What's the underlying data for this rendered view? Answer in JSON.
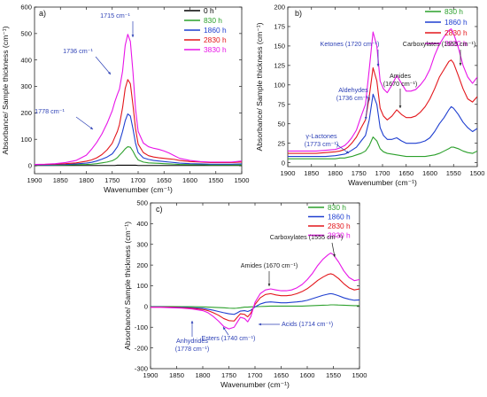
{
  "chart_data": [
    {
      "type": "line",
      "panel_label": "a)",
      "xlabel": "Wavenumber (cm⁻¹)",
      "ylabel": "Absorbance/ Sample thickness (cm⁻¹)",
      "xlim": [
        1900,
        1500
      ],
      "ylim": [
        -30,
        600
      ],
      "x_ticks": [
        1900,
        1850,
        1800,
        1750,
        1700,
        1650,
        1600,
        1550,
        1500
      ],
      "y_ticks": [
        0,
        100,
        200,
        300,
        400,
        500,
        600
      ],
      "legend_position": "top-right",
      "x": [
        1900,
        1880,
        1860,
        1840,
        1820,
        1800,
        1790,
        1780,
        1770,
        1760,
        1750,
        1745,
        1740,
        1736,
        1730,
        1725,
        1720,
        1715,
        1710,
        1705,
        1700,
        1690,
        1680,
        1670,
        1660,
        1650,
        1640,
        1630,
        1620,
        1600,
        1580,
        1560,
        1540,
        1520,
        1500
      ],
      "series": [
        {
          "name": "0 h",
          "color": "#000000",
          "values": [
            1,
            1,
            1,
            1,
            1,
            1,
            1,
            1,
            1,
            1,
            1,
            1,
            2,
            2,
            2,
            2,
            2,
            2,
            2,
            2,
            1,
            1,
            1,
            1,
            1,
            1,
            1,
            1,
            1,
            1,
            1,
            1,
            1,
            1,
            1
          ]
        },
        {
          "name": "830 h",
          "color": "#2ca02c",
          "values": [
            2,
            2,
            2,
            3,
            4,
            5,
            6,
            8,
            11,
            14,
            19,
            24,
            31,
            40,
            52,
            64,
            72,
            70,
            55,
            36,
            22,
            14,
            11,
            10,
            9,
            8,
            7,
            6,
            5,
            4,
            4,
            3,
            3,
            3,
            3
          ]
        },
        {
          "name": "1860 h",
          "color": "#1f3fd0",
          "values": [
            3,
            3,
            4,
            5,
            7,
            10,
            13,
            18,
            25,
            33,
            45,
            58,
            72,
            90,
            130,
            170,
            196,
            188,
            140,
            85,
            50,
            30,
            24,
            20,
            18,
            16,
            14,
            12,
            10,
            8,
            7,
            6,
            6,
            6,
            7
          ]
        },
        {
          "name": "2830 h",
          "color": "#e3161b",
          "values": [
            4,
            5,
            6,
            8,
            11,
            17,
            22,
            30,
            42,
            60,
            85,
            108,
            130,
            156,
            220,
            292,
            326,
            310,
            230,
            140,
            82,
            50,
            38,
            33,
            30,
            28,
            26,
            24,
            20,
            16,
            14,
            12,
            12,
            12,
            14
          ]
        },
        {
          "name": "3830 h",
          "color": "#e815e8",
          "values": [
            5,
            6,
            8,
            12,
            20,
            40,
            62,
            88,
            120,
            160,
            208,
            242,
            270,
            290,
            358,
            455,
            497,
            470,
            355,
            215,
            130,
            86,
            72,
            66,
            62,
            56,
            48,
            38,
            28,
            20,
            16,
            14,
            14,
            14,
            18
          ]
        }
      ],
      "annotations": [
        {
          "text": "1715 cm⁻¹",
          "x": 1715,
          "y": 497
        },
        {
          "text": "1736 cm⁻¹",
          "x": 1736,
          "y": 290
        },
        {
          "text": "1778 cm⁻¹",
          "x": 1778,
          "y": 160
        }
      ]
    },
    {
      "type": "line",
      "panel_label": "b)",
      "xlabel": "Wavenumber (cm⁻¹)",
      "ylabel": "Absorbance/ Sample thickness (cm⁻¹)",
      "xlim": [
        1900,
        1500
      ],
      "ylim": [
        -5,
        200
      ],
      "x_ticks": [
        1900,
        1850,
        1800,
        1750,
        1700,
        1650,
        1600,
        1550,
        1500
      ],
      "y_ticks": [
        0,
        25,
        50,
        75,
        100,
        125,
        150,
        175,
        200
      ],
      "legend_position": "top-right",
      "x": [
        1900,
        1880,
        1860,
        1840,
        1820,
        1800,
        1790,
        1780,
        1773,
        1765,
        1755,
        1745,
        1736,
        1728,
        1720,
        1712,
        1705,
        1698,
        1690,
        1680,
        1670,
        1660,
        1650,
        1640,
        1630,
        1620,
        1610,
        1600,
        1590,
        1580,
        1570,
        1560,
        1555,
        1550,
        1540,
        1530,
        1520,
        1510,
        1500
      ],
      "series": [
        {
          "name": "830 h",
          "color": "#2ca02c",
          "values": [
            5,
            5,
            5,
            5,
            5,
            5,
            6,
            6,
            7,
            8,
            10,
            12,
            15,
            22,
            33,
            28,
            18,
            14,
            12,
            11,
            10,
            9,
            8,
            8,
            8,
            8,
            8,
            9,
            10,
            12,
            15,
            18,
            20,
            20,
            18,
            15,
            13,
            12,
            15
          ]
        },
        {
          "name": "1860 h",
          "color": "#1f3fd0",
          "values": [
            8,
            8,
            8,
            8,
            8,
            9,
            10,
            11,
            13,
            16,
            20,
            28,
            35,
            55,
            88,
            75,
            45,
            35,
            30,
            30,
            32,
            28,
            25,
            25,
            25,
            26,
            28,
            32,
            40,
            50,
            58,
            68,
            72,
            70,
            62,
            52,
            45,
            40,
            44
          ]
        },
        {
          "name": "2830 h",
          "color": "#e3161b",
          "values": [
            12,
            12,
            12,
            12,
            13,
            14,
            15,
            17,
            20,
            25,
            33,
            45,
            55,
            85,
            122,
            105,
            70,
            60,
            55,
            60,
            68,
            62,
            58,
            58,
            60,
            65,
            72,
            82,
            95,
            110,
            120,
            130,
            132,
            128,
            112,
            95,
            82,
            78,
            85
          ]
        },
        {
          "name": "3830 h",
          "color": "#e815e8",
          "values": [
            15,
            15,
            15,
            15,
            16,
            17,
            19,
            22,
            26,
            32,
            42,
            60,
            75,
            120,
            168,
            150,
            105,
            95,
            90,
            100,
            112,
            102,
            92,
            92,
            94,
            100,
            108,
            120,
            138,
            152,
            162,
            170,
            172,
            166,
            148,
            125,
            110,
            102,
            110
          ]
        }
      ],
      "annotations": [
        {
          "text": "Ketones (1720 cm⁻¹)",
          "x": 1720,
          "y": 168
        },
        {
          "text": "Aldehydes",
          "x": 1736,
          "y": 75
        },
        {
          "text": "(1736 cm⁻¹)",
          "x": 1736,
          "y": 75
        },
        {
          "text": "Amides",
          "x": 1670,
          "y": 112
        },
        {
          "text": "(1670 cm⁻¹)",
          "x": 1670,
          "y": 112
        },
        {
          "text": "Carboxylates (1555 cm⁻¹)",
          "x": 1555,
          "y": 172
        },
        {
          "text": "γ-Lactones",
          "x": 1773,
          "y": 26
        },
        {
          "text": "(1773 cm⁻¹)",
          "x": 1773,
          "y": 26
        }
      ]
    },
    {
      "type": "line",
      "panel_label": "c)",
      "xlabel": "Wavenumber (cm⁻¹)",
      "ylabel": "Absorbance/ Sample thickness (cm⁻¹)",
      "xlim": [
        1900,
        1500
      ],
      "ylim": [
        -300,
        500
      ],
      "x_ticks": [
        1900,
        1850,
        1800,
        1750,
        1700,
        1650,
        1600,
        1550,
        1500
      ],
      "y_ticks": [
        -300,
        -200,
        -100,
        0,
        100,
        200,
        300,
        400,
        500
      ],
      "legend_position": "top-right",
      "x": [
        1900,
        1880,
        1860,
        1840,
        1820,
        1800,
        1790,
        1780,
        1770,
        1760,
        1750,
        1740,
        1735,
        1728,
        1720,
        1714,
        1708,
        1700,
        1690,
        1680,
        1670,
        1660,
        1650,
        1640,
        1630,
        1620,
        1610,
        1600,
        1590,
        1580,
        1570,
        1560,
        1555,
        1550,
        1540,
        1530,
        1520,
        1510,
        1500
      ],
      "series": [
        {
          "name": "830 h",
          "color": "#2ca02c",
          "values": [
            0,
            0,
            0,
            -1,
            -1,
            -2,
            -3,
            -4,
            -5,
            -6,
            -8,
            -9,
            -8,
            -6,
            -3,
            -3,
            -2,
            -1,
            0,
            1,
            2,
            2,
            2,
            2,
            2,
            2,
            2,
            3,
            4,
            5,
            6,
            7,
            8,
            8,
            7,
            6,
            5,
            4,
            4
          ]
        },
        {
          "name": "1860 h",
          "color": "#1f3fd0",
          "values": [
            -2,
            -2,
            -3,
            -4,
            -6,
            -9,
            -13,
            -18,
            -24,
            -30,
            -35,
            -38,
            -32,
            -22,
            -20,
            -24,
            -18,
            -2,
            12,
            20,
            22,
            20,
            18,
            18,
            20,
            22,
            25,
            30,
            38,
            46,
            54,
            60,
            62,
            60,
            52,
            42,
            35,
            30,
            32
          ]
        },
        {
          "name": "2830 h",
          "color": "#e3161b",
          "values": [
            -3,
            -3,
            -4,
            -6,
            -9,
            -14,
            -20,
            -30,
            -42,
            -58,
            -68,
            -70,
            -55,
            -35,
            -38,
            -50,
            -32,
            10,
            42,
            58,
            62,
            56,
            52,
            52,
            55,
            62,
            72,
            86,
            105,
            126,
            142,
            155,
            158,
            154,
            135,
            110,
            90,
            80,
            85
          ]
        },
        {
          "name": "3830 h",
          "color": "#e815e8",
          "values": [
            -4,
            -4,
            -6,
            -8,
            -12,
            -20,
            -30,
            -48,
            -70,
            -96,
            -108,
            -100,
            -80,
            -52,
            -58,
            -74,
            -48,
            20,
            62,
            80,
            85,
            80,
            76,
            76,
            80,
            90,
            106,
            130,
            160,
            198,
            228,
            250,
            258,
            250,
            215,
            172,
            140,
            125,
            130
          ]
        }
      ],
      "annotations": [
        {
          "text": "Carboxylates (1555 cm⁻¹)",
          "x": 1555,
          "y": 258
        },
        {
          "text": "Amides (1670 cm⁻¹)",
          "x": 1670,
          "y": 85
        },
        {
          "text": "Acids (1714 cm⁻¹)",
          "x": 1714,
          "y": -74
        },
        {
          "text": "Esters (1740 cm⁻¹)",
          "x": 1740,
          "y": -100
        },
        {
          "text": "Anhydrides",
          "x": 1778,
          "y": -108
        },
        {
          "text": "(1778 cm⁻¹)",
          "x": 1778,
          "y": -108
        }
      ]
    }
  ]
}
